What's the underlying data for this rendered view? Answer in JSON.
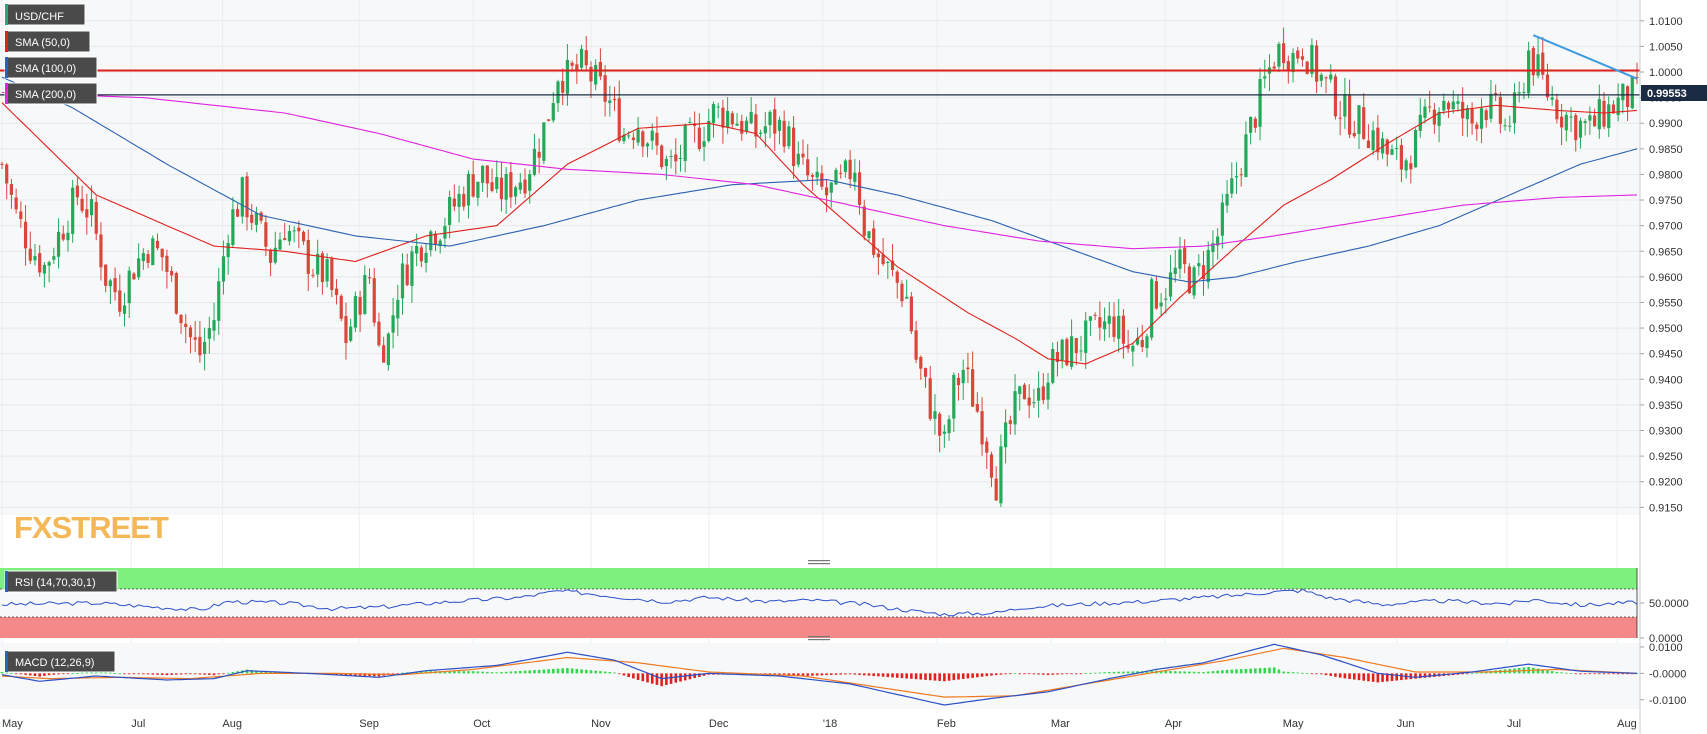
{
  "chart_data": {
    "type": "candlestick",
    "symbol": "USD/CHF",
    "watermark": "FXSTREET",
    "price_axis": {
      "ylim": [
        0.9135,
        1.0125
      ],
      "ticks": [
        "1.0100",
        "1.0050",
        "1.0000",
        "0.9950",
        "0.9900",
        "0.9850",
        "0.9800",
        "0.9750",
        "0.9700",
        "0.9650",
        "0.9600",
        "0.9550",
        "0.9500",
        "0.9450",
        "0.9400",
        "0.9350",
        "0.9300",
        "0.9250",
        "0.9200",
        "0.9150"
      ],
      "current_price": "0.99553",
      "current_value": 0.99553
    },
    "x_axis": {
      "labels": [
        "May",
        "Jul",
        "Aug",
        "Sep",
        "Oct",
        "Nov",
        "Dec",
        "'18",
        "Feb",
        "Mar",
        "Apr",
        "May",
        "Jun",
        "Jul",
        "Aug"
      ]
    },
    "horizontal_levels": [
      {
        "value": 1.0003,
        "color": "#e0201c"
      },
      {
        "value": 0.99553,
        "color": "#1c2b44"
      }
    ],
    "trendline": {
      "from": [
        325,
        1.0072
      ],
      "to": [
        347,
        0.9987
      ],
      "color": "#3f9be0"
    },
    "ohlc_anchors": [
      [
        0,
        0.982
      ],
      [
        3,
        0.972
      ],
      [
        6,
        0.966
      ],
      [
        9,
        0.962
      ],
      [
        13,
        0.97
      ],
      [
        16,
        0.976
      ],
      [
        19,
        0.972
      ],
      [
        22,
        0.96
      ],
      [
        25,
        0.956
      ],
      [
        28,
        0.962
      ],
      [
        31,
        0.966
      ],
      [
        34,
        0.964
      ],
      [
        37,
        0.956
      ],
      [
        40,
        0.948
      ],
      [
        42,
        0.945
      ],
      [
        45,
        0.952
      ],
      [
        48,
        0.97
      ],
      [
        51,
        0.976
      ],
      [
        54,
        0.97
      ],
      [
        57,
        0.964
      ],
      [
        60,
        0.97
      ],
      [
        63,
        0.966
      ],
      [
        66,
        0.962
      ],
      [
        69,
        0.96
      ],
      [
        71,
        0.954
      ],
      [
        73,
        0.948
      ],
      [
        76,
        0.956
      ],
      [
        78,
        0.96
      ],
      [
        80,
        0.946
      ],
      [
        82,
        0.948
      ],
      [
        84,
        0.958
      ],
      [
        87,
        0.964
      ],
      [
        90,
        0.968
      ],
      [
        93,
        0.97
      ],
      [
        96,
        0.974
      ],
      [
        99,
        0.978
      ],
      [
        102,
        0.98
      ],
      [
        105,
        0.976
      ],
      [
        108,
        0.978
      ],
      [
        111,
        0.98
      ],
      [
        114,
        0.986
      ],
      [
        116,
        0.992
      ],
      [
        118,
        1.0
      ],
      [
        120,
        0.999
      ],
      [
        123,
        1.001
      ],
      [
        126,
        0.998
      ],
      [
        129,
        0.994
      ],
      [
        132,
        0.988
      ],
      [
        135,
        0.99
      ],
      [
        138,
        0.986
      ],
      [
        141,
        0.982
      ],
      [
        143,
        0.982
      ],
      [
        145,
        0.986
      ],
      [
        148,
        0.988
      ],
      [
        151,
        0.992
      ],
      [
        154,
        0.992
      ],
      [
        157,
        0.99
      ],
      [
        160,
        0.988
      ],
      [
        163,
        0.99
      ],
      [
        166,
        0.989
      ],
      [
        169,
        0.982
      ],
      [
        172,
        0.978
      ],
      [
        175,
        0.976
      ],
      [
        178,
        0.978
      ],
      [
        181,
        0.982
      ],
      [
        183,
        0.97
      ],
      [
        186,
        0.964
      ],
      [
        189,
        0.96
      ],
      [
        192,
        0.956
      ],
      [
        194,
        0.944
      ],
      [
        196,
        0.938
      ],
      [
        198,
        0.932
      ],
      [
        200,
        0.927
      ],
      [
        202,
        0.938
      ],
      [
        204,
        0.942
      ],
      [
        207,
        0.934
      ],
      [
        209,
        0.928
      ],
      [
        211,
        0.92
      ],
      [
        213,
        0.928
      ],
      [
        215,
        0.934
      ],
      [
        217,
        0.938
      ],
      [
        220,
        0.936
      ],
      [
        222,
        0.942
      ],
      [
        224,
        0.944
      ],
      [
        227,
        0.946
      ],
      [
        230,
        0.948
      ],
      [
        233,
        0.95
      ],
      [
        236,
        0.951
      ],
      [
        239,
        0.946
      ],
      [
        242,
        0.948
      ],
      [
        244,
        0.956
      ],
      [
        247,
        0.958
      ],
      [
        250,
        0.962
      ],
      [
        253,
        0.959
      ],
      [
        256,
        0.964
      ],
      [
        258,
        0.968
      ],
      [
        260,
        0.974
      ],
      [
        262,
        0.98
      ],
      [
        264,
        0.986
      ],
      [
        266,
        0.992
      ],
      [
        268,
        0.998
      ],
      [
        270,
        1.003
      ],
      [
        272,
        1.005
      ],
      [
        274,
        1.003
      ],
      [
        276,
        1.005
      ],
      [
        279,
        1.0
      ],
      [
        282,
        0.996
      ],
      [
        285,
        0.992
      ],
      [
        288,
        0.99
      ],
      [
        291,
        0.988
      ],
      [
        294,
        0.984
      ],
      [
        297,
        0.982
      ],
      [
        300,
        0.986
      ],
      [
        303,
        0.992
      ],
      [
        306,
        0.995
      ],
      [
        309,
        0.992
      ],
      [
        312,
        0.99
      ],
      [
        314,
        0.994
      ],
      [
        317,
        0.992
      ],
      [
        319,
        0.989
      ],
      [
        322,
        0.994
      ],
      [
        324,
        1.004
      ],
      [
        326,
        1.0
      ],
      [
        328,
        0.996
      ],
      [
        331,
        0.992
      ],
      [
        334,
        0.99
      ],
      [
        337,
        0.989
      ],
      [
        340,
        0.992
      ],
      [
        343,
        0.994
      ],
      [
        346,
        0.9955
      ],
      [
        347,
        0.9955
      ]
    ],
    "series": [
      {
        "name": "SMA (50,0)",
        "color": "#e0201c",
        "anchors": [
          [
            0,
            0.994
          ],
          [
            20,
            0.976
          ],
          [
            45,
            0.966
          ],
          [
            60,
            0.965
          ],
          [
            75,
            0.963
          ],
          [
            90,
            0.968
          ],
          [
            105,
            0.97
          ],
          [
            120,
            0.982
          ],
          [
            135,
            0.989
          ],
          [
            150,
            0.99
          ],
          [
            160,
            0.988
          ],
          [
            170,
            0.978
          ],
          [
            190,
            0.962
          ],
          [
            205,
            0.953
          ],
          [
            215,
            0.948
          ],
          [
            222,
            0.944
          ],
          [
            230,
            0.943
          ],
          [
            240,
            0.947
          ],
          [
            250,
            0.956
          ],
          [
            262,
            0.966
          ],
          [
            272,
            0.974
          ],
          [
            282,
            0.979
          ],
          [
            294,
            0.986
          ],
          [
            305,
            0.992
          ],
          [
            317,
            0.9935
          ],
          [
            330,
            0.9925
          ],
          [
            340,
            0.992
          ],
          [
            347,
            0.9925
          ]
        ]
      },
      {
        "name": "SMA (100,0)",
        "color": "#2b62b0",
        "anchors": [
          [
            0,
            0.999
          ],
          [
            15,
            0.993
          ],
          [
            35,
            0.982
          ],
          [
            55,
            0.972
          ],
          [
            75,
            0.968
          ],
          [
            95,
            0.966
          ],
          [
            115,
            0.97
          ],
          [
            135,
            0.975
          ],
          [
            155,
            0.978
          ],
          [
            175,
            0.979
          ],
          [
            190,
            0.976
          ],
          [
            210,
            0.971
          ],
          [
            225,
            0.966
          ],
          [
            240,
            0.961
          ],
          [
            252,
            0.959
          ],
          [
            262,
            0.96
          ],
          [
            275,
            0.963
          ],
          [
            290,
            0.966
          ],
          [
            305,
            0.97
          ],
          [
            320,
            0.976
          ],
          [
            335,
            0.982
          ],
          [
            347,
            0.985
          ]
        ]
      },
      {
        "name": "SMA (200,0)",
        "color": "#e024e0",
        "anchors": [
          [
            0,
            0.996
          ],
          [
            30,
            0.995
          ],
          [
            60,
            0.992
          ],
          [
            80,
            0.988
          ],
          [
            100,
            0.983
          ],
          [
            120,
            0.981
          ],
          [
            140,
            0.98
          ],
          [
            160,
            0.978
          ],
          [
            180,
            0.974
          ],
          [
            200,
            0.97
          ],
          [
            220,
            0.967
          ],
          [
            240,
            0.9655
          ],
          [
            255,
            0.966
          ],
          [
            270,
            0.968
          ],
          [
            290,
            0.971
          ],
          [
            310,
            0.974
          ],
          [
            330,
            0.9755
          ],
          [
            347,
            0.976
          ]
        ]
      }
    ],
    "rsi": {
      "label": "RSI (14,70,30,1)",
      "ylim": [
        0,
        100
      ],
      "ticks": [
        "50.0000",
        "0.0000"
      ],
      "overbought": 70,
      "oversold": 30,
      "anchors": [
        [
          0,
          48
        ],
        [
          20,
          50
        ],
        [
          42,
          40
        ],
        [
          48,
          52
        ],
        [
          60,
          50
        ],
        [
          70,
          42
        ],
        [
          80,
          44
        ],
        [
          95,
          52
        ],
        [
          110,
          58
        ],
        [
          118,
          67
        ],
        [
          124,
          64
        ],
        [
          132,
          58
        ],
        [
          141,
          52
        ],
        [
          150,
          58
        ],
        [
          163,
          52
        ],
        [
          172,
          54
        ],
        [
          183,
          48
        ],
        [
          194,
          38
        ],
        [
          200,
          34
        ],
        [
          211,
          36
        ],
        [
          217,
          44
        ],
        [
          228,
          48
        ],
        [
          242,
          52
        ],
        [
          260,
          60
        ],
        [
          270,
          66
        ],
        [
          276,
          68
        ],
        [
          282,
          57
        ],
        [
          293,
          48
        ],
        [
          305,
          53
        ],
        [
          320,
          49
        ],
        [
          325,
          55
        ],
        [
          335,
          47
        ],
        [
          347,
          51
        ]
      ]
    },
    "macd": {
      "label": "MACD (12,26,9)",
      "ylim": [
        -0.0135,
        0.0115
      ],
      "ticks": [
        "0.0100",
        "-0.0000",
        "-0.0100"
      ],
      "macd_anchors": [
        [
          0,
          -0.0005
        ],
        [
          8,
          -0.003
        ],
        [
          20,
          -0.001
        ],
        [
          35,
          -0.0025
        ],
        [
          45,
          -0.002
        ],
        [
          52,
          0.001
        ],
        [
          65,
          0.0
        ],
        [
          80,
          -0.0015
        ],
        [
          90,
          0.001
        ],
        [
          105,
          0.003
        ],
        [
          120,
          0.008
        ],
        [
          130,
          0.005
        ],
        [
          140,
          -0.002
        ],
        [
          150,
          0.0
        ],
        [
          165,
          -0.001
        ],
        [
          180,
          -0.004
        ],
        [
          190,
          -0.008
        ],
        [
          200,
          -0.012
        ],
        [
          210,
          -0.0095
        ],
        [
          222,
          -0.007
        ],
        [
          235,
          -0.002
        ],
        [
          245,
          0.0015
        ],
        [
          255,
          0.004
        ],
        [
          270,
          0.011
        ],
        [
          280,
          0.007
        ],
        [
          292,
          0.0
        ],
        [
          300,
          -0.0015
        ],
        [
          312,
          0.0005
        ],
        [
          324,
          0.0035
        ],
        [
          335,
          0.0008
        ],
        [
          347,
          0.0
        ]
      ],
      "signal_anchors": [
        [
          0,
          -0.001
        ],
        [
          10,
          -0.002
        ],
        [
          25,
          -0.0015
        ],
        [
          40,
          -0.002
        ],
        [
          55,
          0.0
        ],
        [
          70,
          0.0
        ],
        [
          85,
          -0.0005
        ],
        [
          100,
          0.0015
        ],
        [
          120,
          0.006
        ],
        [
          135,
          0.004
        ],
        [
          150,
          0.0005
        ],
        [
          170,
          -0.001
        ],
        [
          185,
          -0.005
        ],
        [
          200,
          -0.009
        ],
        [
          215,
          -0.0085
        ],
        [
          230,
          -0.004
        ],
        [
          245,
          0.0005
        ],
        [
          260,
          0.005
        ],
        [
          272,
          0.0095
        ],
        [
          285,
          0.006
        ],
        [
          300,
          0.0005
        ],
        [
          315,
          0.0005
        ],
        [
          330,
          0.0015
        ],
        [
          347,
          0.0
        ]
      ]
    }
  }
}
